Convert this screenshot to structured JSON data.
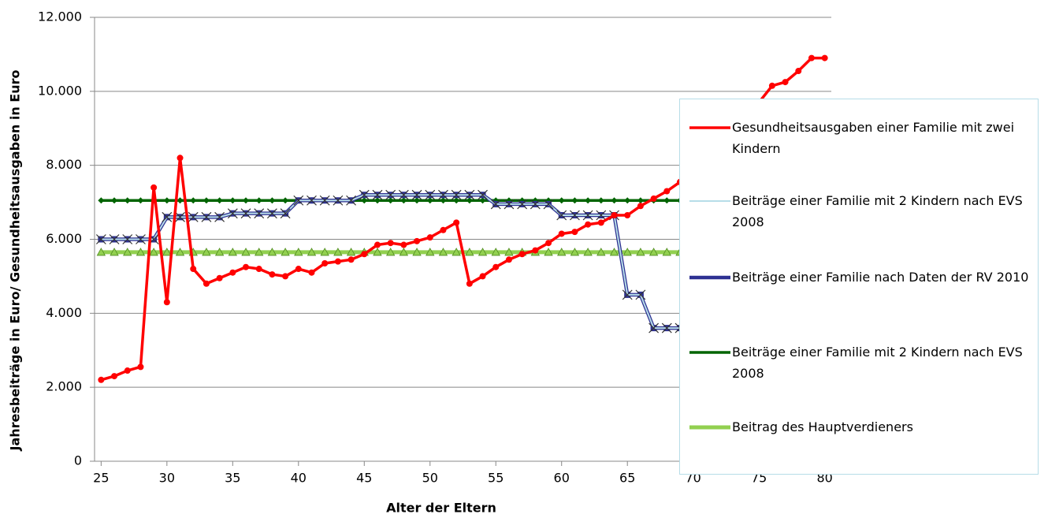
{
  "chart_data": {
    "type": "line",
    "x_label": "Alter der Eltern",
    "y_label": "Jahresbeiträge in Euro/ Gesundheitsausgaben in Euro",
    "x": [
      25,
      26,
      27,
      28,
      29,
      30,
      31,
      32,
      33,
      34,
      35,
      36,
      37,
      38,
      39,
      40,
      41,
      42,
      43,
      44,
      45,
      46,
      47,
      48,
      49,
      50,
      51,
      52,
      53,
      54,
      55,
      56,
      57,
      58,
      59,
      60,
      61,
      62,
      63,
      64,
      65,
      66,
      67,
      68,
      69,
      70,
      71,
      72,
      73,
      74,
      75,
      76,
      77,
      78,
      79,
      80
    ],
    "xlim": [
      24.5,
      80.5
    ],
    "xticks": [
      25,
      30,
      35,
      40,
      45,
      50,
      55,
      60,
      65,
      70,
      75,
      80
    ],
    "ylim": [
      0,
      12000
    ],
    "yticks": [
      0,
      {
        "value": 2000,
        "label": "2.000"
      },
      {
        "value": 4000,
        "label": "4.000"
      },
      {
        "value": 6000,
        "label": "6.000"
      },
      {
        "value": 8000,
        "label": "8.000"
      },
      {
        "value": 10000,
        "label": "10.000"
      },
      {
        "value": 12000,
        "label": "12.000"
      }
    ],
    "grid": true,
    "series": [
      {
        "name": "Gesundheitsausgaben einer Familie mit zwei Kindern",
        "color": "#ff0000",
        "marker": "circle",
        "values": [
          2200,
          2300,
          2450,
          2550,
          7400,
          4300,
          8200,
          5200,
          4800,
          4950,
          5100,
          5250,
          5200,
          5050,
          5000,
          5200,
          5100,
          5350,
          5400,
          5450,
          5600,
          5850,
          5900,
          5850,
          5950,
          6050,
          6250,
          6450,
          4800,
          5000,
          5250,
          5450,
          5600,
          5700,
          5900,
          6150,
          6200,
          6400,
          6450,
          6650,
          6650,
          6900,
          7100,
          7300,
          7550,
          7800,
          8100,
          8400,
          8800,
          9200,
          9700,
          10150,
          10250,
          10550,
          10900,
          10900
        ]
      },
      {
        "name": "Beiträge einer Familie mit 2 Kindern nach EVS 2008",
        "color": "#b7dde8",
        "marker": "plus",
        "values": [
          6000,
          6000,
          6000,
          6000,
          6000,
          6600,
          6600,
          6600,
          6600,
          6600,
          6700,
          6700,
          6700,
          6700,
          6700,
          7050,
          7050,
          7050,
          7050,
          7050,
          7200,
          7200,
          7200,
          7200,
          7200,
          7200,
          7200,
          7200,
          7200,
          7200,
          6950,
          6950,
          6950,
          6950,
          6950,
          6650,
          6650,
          6650,
          6650,
          6650,
          4500,
          4500,
          3600,
          3600,
          3600,
          3600,
          3600,
          3600,
          3600,
          3600,
          3600,
          3600,
          3600,
          3600,
          3600,
          3600
        ]
      },
      {
        "name": "Beiträge einer Familie nach Daten der RV 2010",
        "color": "#2e3192",
        "marker": "square",
        "values": [
          6000,
          6000,
          6000,
          6000,
          6000,
          6600,
          6600,
          6600,
          6600,
          6600,
          6700,
          6700,
          6700,
          6700,
          6700,
          7050,
          7050,
          7050,
          7050,
          7050,
          7200,
          7200,
          7200,
          7200,
          7200,
          7200,
          7200,
          7200,
          7200,
          7200,
          6950,
          6950,
          6950,
          6950,
          6950,
          6650,
          6650,
          6650,
          6650,
          6650,
          4500,
          4500,
          3600,
          3600,
          3600,
          3600,
          3600,
          3600,
          3600,
          3600,
          3600,
          3600,
          3600,
          3600,
          3600,
          3600
        ]
      },
      {
        "name": "Beiträge einer Familie mit 2 Kindern nach EVS 2008",
        "color": "#006400",
        "marker": "diamond",
        "values": [
          7050,
          7050,
          7050,
          7050,
          7050,
          7050,
          7050,
          7050,
          7050,
          7050,
          7050,
          7050,
          7050,
          7050,
          7050,
          7050,
          7050,
          7050,
          7050,
          7050,
          7050,
          7050,
          7050,
          7050,
          7050,
          7050,
          7050,
          7050,
          7050,
          7050,
          7050,
          7050,
          7050,
          7050,
          7050,
          7050,
          7050,
          7050,
          7050,
          7050,
          7050,
          7050,
          7050,
          7050,
          7050,
          7050,
          7050,
          7050,
          7050,
          7050,
          7050,
          7050,
          7050,
          7050,
          7050,
          7050
        ]
      },
      {
        "name": "Beitrag des Hauptverdieners",
        "color": "#92d050",
        "marker": "triangle",
        "values": [
          5650,
          5650,
          5650,
          5650,
          5650,
          5650,
          5650,
          5650,
          5650,
          5650,
          5650,
          5650,
          5650,
          5650,
          5650,
          5650,
          5650,
          5650,
          5650,
          5650,
          5650,
          5650,
          5650,
          5650,
          5650,
          5650,
          5650,
          5650,
          5650,
          5650,
          5650,
          5650,
          5650,
          5650,
          5650,
          5650,
          5650,
          5650,
          5650,
          5650,
          5650,
          5650,
          5650,
          5650,
          5650,
          5650,
          5650,
          5650,
          5650,
          5650,
          5650,
          5650,
          5650,
          5650,
          5650,
          5650
        ]
      }
    ]
  }
}
